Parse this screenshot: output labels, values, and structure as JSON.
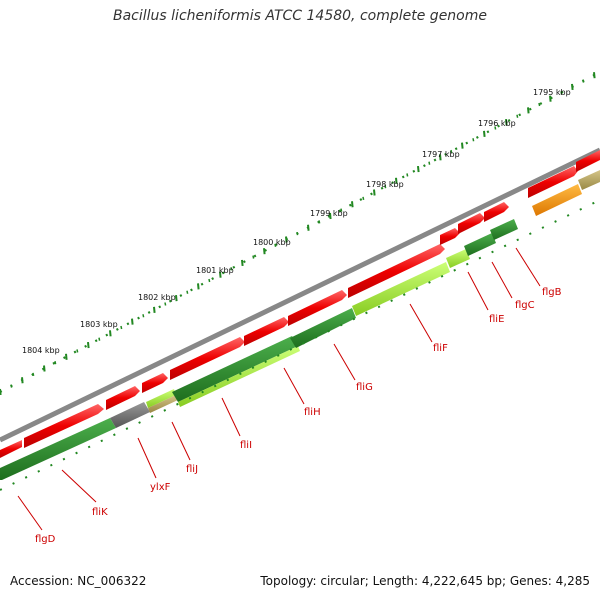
{
  "title": "Bacillus licheniformis ATCC 14580, complete genome",
  "footer": {
    "accession": "Accession: NC_006322",
    "topology": "Topology: circular; Length: 4,222,645 bp; Genes: 4,285"
  },
  "ruler": [
    "1795 kbp",
    "1796 kbp",
    "1797 kbp",
    "1798 kbp",
    "1799 kbp",
    "1800 kbp",
    "1801 kbp",
    "1802 kbp",
    "1803 kbp",
    "1804 kbp"
  ],
  "genes": [
    "flgB",
    "flgC",
    "fliE",
    "fliF",
    "fliG",
    "fliH",
    "fliI",
    "fliJ",
    "ylxF",
    "fliK",
    "flgD"
  ],
  "colors": {
    "forward": "#ee0000",
    "backbone": "#888888",
    "dark_green": "#2a8a2a",
    "light_green": "#aaee44",
    "orange": "#ff9900",
    "khaki": "#bbaa66",
    "gray_feature": "#777777",
    "label_red": "#cc0000",
    "tick_green": "#228822"
  }
}
